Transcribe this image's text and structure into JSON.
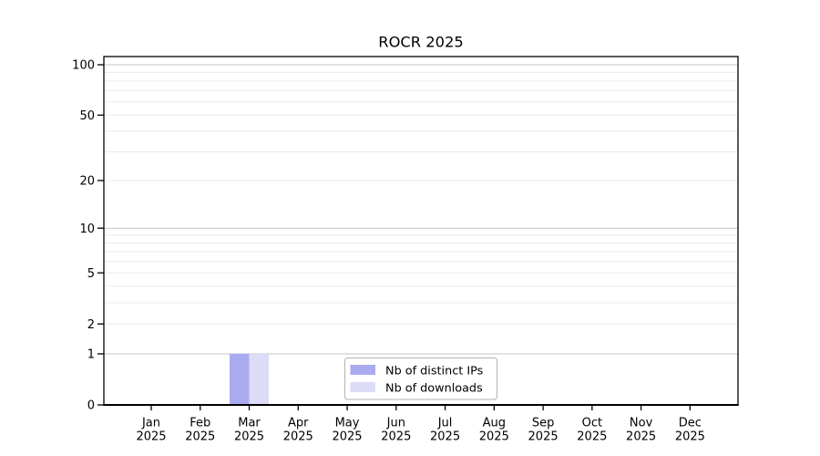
{
  "chart_data": {
    "type": "bar",
    "title": "ROCR 2025",
    "categories": [
      "Jan 2025",
      "Feb 2025",
      "Mar 2025",
      "Apr 2025",
      "May 2025",
      "Jun 2025",
      "Jul 2025",
      "Aug 2025",
      "Sep 2025",
      "Oct 2025",
      "Nov 2025",
      "Dec 2025"
    ],
    "series": [
      {
        "name": "Nb of distinct IPs",
        "color": "#aaaaf0",
        "values": [
          0,
          0,
          1,
          0,
          0,
          0,
          0,
          0,
          0,
          0,
          0,
          0
        ]
      },
      {
        "name": "Nb of downloads",
        "color": "#dcdcf8",
        "values": [
          0,
          0,
          1,
          0,
          0,
          0,
          0,
          0,
          0,
          0,
          0,
          0
        ]
      }
    ],
    "y_scale": "log1p",
    "ylim": [
      0,
      110
    ],
    "y_ticks": [
      0,
      1,
      2,
      5,
      10,
      20,
      50,
      100
    ],
    "y_major_gridlines": [
      1,
      10,
      100
    ],
    "y_minor_gridlines": [
      2,
      3,
      4,
      5,
      6,
      7,
      8,
      9,
      20,
      30,
      40,
      50,
      60,
      70,
      80,
      90
    ],
    "grid": "horizontal",
    "legend_position": "inside-bottom-center",
    "colors": {
      "background": "#ffffff",
      "axis": "#000000",
      "major_grid": "#c3c3c3",
      "minor_grid": "#ebebeb",
      "legend_border": "#b3b3b3",
      "text": "#000000"
    }
  }
}
